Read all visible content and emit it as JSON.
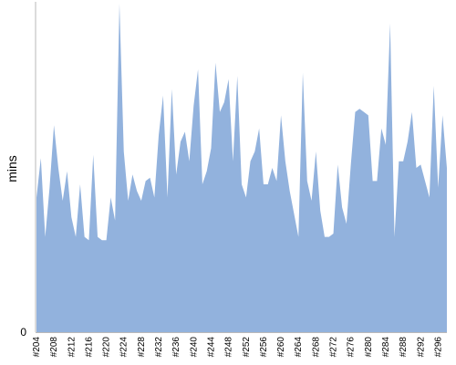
{
  "chart_data": {
    "type": "area",
    "ylabel": "mins",
    "xlabel": "",
    "y_tick_labels": [
      "0"
    ],
    "ylim": [
      0,
      100
    ],
    "fill_color": "#92b2dd",
    "axis_color": "#b9b9b9",
    "x_tick_labels": [
      "#204",
      "#208",
      "#212",
      "#216",
      "#220",
      "#224",
      "#228",
      "#232",
      "#236",
      "#240",
      "#244",
      "#248",
      "#252",
      "#256",
      "#260",
      "#264",
      "#268",
      "#272",
      "#276",
      "#280",
      "#284",
      "#288",
      "#292",
      "#296"
    ],
    "x": [
      204,
      205,
      206,
      207,
      208,
      209,
      210,
      211,
      212,
      213,
      214,
      215,
      216,
      217,
      218,
      219,
      220,
      221,
      222,
      223,
      224,
      225,
      226,
      227,
      228,
      229,
      230,
      231,
      232,
      233,
      234,
      235,
      236,
      237,
      238,
      239,
      240,
      241,
      242,
      243,
      244,
      245,
      246,
      247,
      248,
      249,
      250,
      251,
      252,
      253,
      254,
      255,
      256,
      257,
      258,
      259,
      260,
      261,
      262,
      263,
      264,
      265,
      266,
      267,
      268,
      269,
      270,
      271,
      272,
      273,
      274,
      275,
      276,
      277,
      278,
      279,
      280,
      281,
      282,
      283,
      284,
      285,
      286,
      287,
      288,
      289,
      290,
      291,
      292,
      293,
      294,
      295,
      296,
      297,
      298
    ],
    "values": [
      41,
      53,
      29,
      44,
      63,
      50,
      40,
      49,
      35,
      29,
      45,
      29,
      28,
      54,
      29,
      28,
      28,
      41,
      34,
      100,
      55,
      40,
      48,
      43,
      40,
      46,
      47,
      41,
      60,
      72,
      41,
      74,
      48,
      58,
      61,
      52,
      69,
      80,
      45,
      49,
      56,
      82,
      67,
      70,
      77,
      52,
      78,
      45,
      41,
      52,
      55,
      62,
      45,
      45,
      50,
      46,
      66,
      52,
      43,
      36,
      29,
      79,
      46,
      40,
      55,
      37,
      29,
      29,
      30,
      51,
      38,
      33,
      51,
      67,
      68,
      67,
      66,
      46,
      46,
      62,
      57,
      94,
      29,
      52,
      52,
      58,
      67,
      50,
      51,
      46,
      41,
      75,
      44,
      66,
      50
    ]
  }
}
